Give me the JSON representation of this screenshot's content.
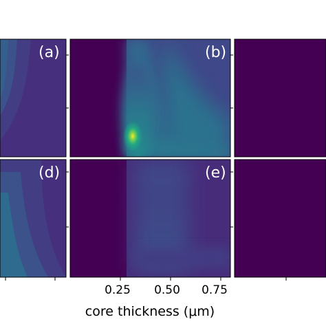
{
  "colors": {
    "background": "#440154",
    "colormap": [
      "#440154",
      "#482475",
      "#414487",
      "#355f8d",
      "#2a788e",
      "#21918c",
      "#22a884",
      "#44bf70",
      "#7ad151",
      "#bddf26",
      "#fde725"
    ]
  },
  "chart_data": {
    "type": "heatmap",
    "colormap": "viridis",
    "xlabel": "core thickness  (μm)",
    "x_ticks": [
      "0.25",
      "0.50",
      "0.75"
    ],
    "xlim": [
      0.0,
      0.8
    ],
    "panels": [
      {
        "label": "(a)",
        "row": 1,
        "col": 1,
        "description_values": {
          "max_intensity": 0.45
        }
      },
      {
        "label": "(b)",
        "row": 1,
        "col": 2,
        "cutoff": 0.25,
        "peak": {
          "x": 0.28,
          "intensity": 0.9
        }
      },
      {
        "label": "",
        "row": 1,
        "col": 3,
        "max_intensity": 0.0
      },
      {
        "label": "(d)",
        "row": 2,
        "col": 1,
        "description_values": {
          "max_intensity": 0.4
        }
      },
      {
        "label": "(e)",
        "row": 2,
        "col": 2,
        "cutoff": 0.25,
        "peak": {
          "x": 0.42,
          "intensity": 0.35
        }
      },
      {
        "label": "",
        "row": 2,
        "col": 3,
        "max_intensity": 0.0
      }
    ]
  }
}
